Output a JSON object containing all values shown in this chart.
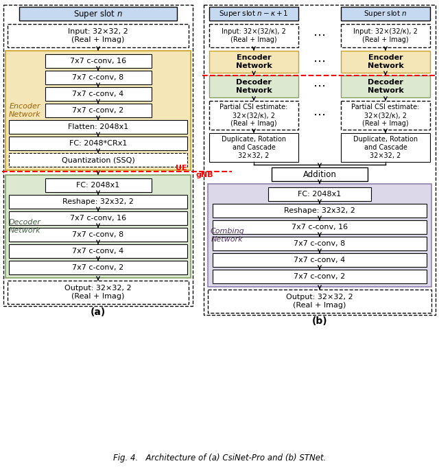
{
  "fig_width": 6.4,
  "fig_height": 6.85,
  "caption": "Fig. 4.   Architecture of (a) CsiNet-Pro and (b) STNet.",
  "bg_color": "#ffffff",
  "encoder_bg": "#f5e6b8",
  "decoder_bg": "#dde8d0",
  "combining_bg": "#dcd8ea",
  "header_bg": "#c5d9f0",
  "enc_edge": "#c8a020",
  "dec_edge": "#80a060",
  "comb_edge": "#9080b0",
  "part_a": {
    "super_slot_label": "Super slot $n$",
    "encoder_label": "Encoder\nNetwork",
    "encoder_blocks": [
      "7x7 c-conv, 16",
      "7x7 c-conv, 8",
      "7x7 c-conv, 4",
      "7x7 c-conv, 2",
      "Flatten: 2048x1",
      "FC: 2048*CRx1",
      "Quantization (SSQ)"
    ],
    "decoder_label": "Decoder\nNetwork",
    "decoder_blocks": [
      "FC: 2048x1",
      "Reshape: 32x32, 2",
      "7x7 c-conv, 16",
      "7x7 c-conv, 8",
      "7x7 c-conv, 4",
      "7x7 c-conv, 2"
    ]
  },
  "part_b": {
    "super_slot_labels": [
      "Super slot $n - \\kappa + 1$",
      "Super slot $n$"
    ],
    "combining_label": "Combing\nNetwork",
    "combining_blocks": [
      "FC: 2048x1",
      "Reshape: 32x32, 2",
      "7x7 c-conv, 16",
      "7x7 c-conv, 8",
      "7x7 c-conv, 4",
      "7x7 c-conv, 2"
    ]
  }
}
